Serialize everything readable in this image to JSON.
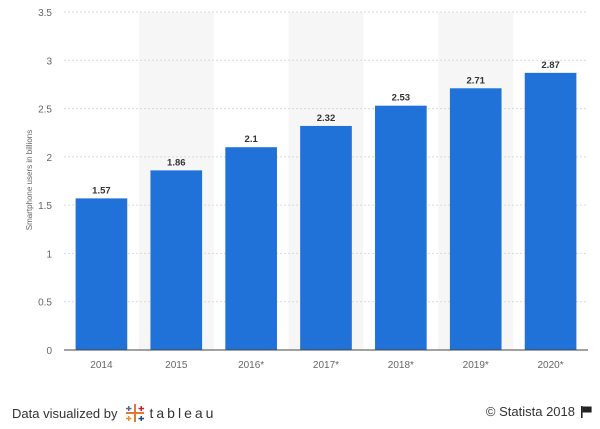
{
  "chart_data": {
    "type": "bar",
    "title": "",
    "xlabel": "",
    "ylabel": "Smartphone users in billions",
    "categories": [
      "2014",
      "2015",
      "2016*",
      "2017*",
      "2018*",
      "2019*",
      "2020*"
    ],
    "values": [
      1.57,
      1.86,
      2.1,
      2.32,
      2.53,
      2.71,
      2.87
    ],
    "value_labels": [
      "1.57",
      "1.86",
      "2.1",
      "2.32",
      "2.53",
      "2.71",
      "2.87"
    ],
    "yticks": [
      "0",
      "0.5",
      "1",
      "1.5",
      "2",
      "2.5",
      "3",
      "3.5"
    ],
    "ylim": [
      0,
      3.5
    ],
    "grid": true,
    "legend": "none",
    "bar_color": "#2172D8",
    "band_color": "#F6F6F6"
  },
  "footer": {
    "credit_text": "Data visualized by",
    "tableau_text": "tableau",
    "copyright_text": "© Statista 2018"
  }
}
